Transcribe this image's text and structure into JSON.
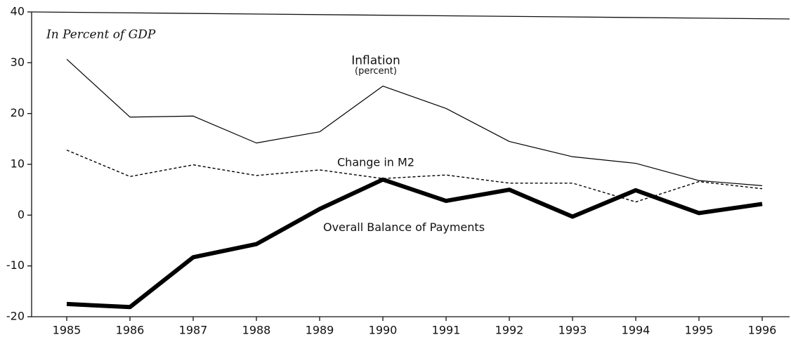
{
  "chart_data": {
    "type": "line",
    "title": "In Percent of GDP",
    "annotations": [
      "Inflation",
      "(percent)",
      "Change in M2",
      "Overall Balance of Payments"
    ],
    "categories": [
      "1985",
      "1986",
      "1987",
      "1988",
      "1989",
      "1990",
      "1991",
      "1992",
      "1993",
      "1994",
      "1995",
      "1996"
    ],
    "series": [
      {
        "name": "Inflation",
        "color": "#000000",
        "style": "solid",
        "values": [
          30.7,
          19.3,
          19.5,
          14.2,
          16.4,
          25.4,
          21.0,
          14.5,
          11.5,
          10.2,
          6.8,
          5.8
        ]
      },
      {
        "name": "Change in M2",
        "color": "#000000",
        "style": "dashed",
        "values": [
          12.8,
          7.6,
          9.9,
          7.8,
          8.9,
          7.2,
          7.9,
          6.3,
          6.3,
          2.6,
          6.6,
          5.2
        ]
      },
      {
        "name": "Overall Balance of Payments",
        "color": "#000000",
        "style": "thick",
        "values": [
          -17.5,
          -18.1,
          -8.3,
          -5.7,
          1.2,
          7.0,
          2.8,
          5.0,
          -0.3,
          4.9,
          0.4,
          2.2
        ]
      }
    ],
    "ylim": [
      -20,
      40
    ],
    "yticks": [
      -20,
      -10,
      0,
      10,
      20,
      30,
      40
    ],
    "grid": false,
    "legend": false
  }
}
